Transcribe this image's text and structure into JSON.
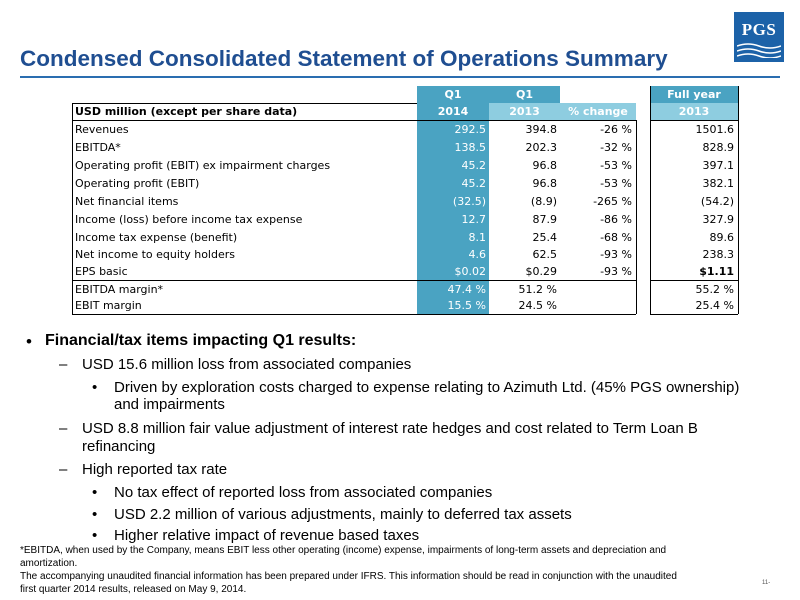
{
  "header": {
    "title": "Condensed Consolidated Statement of Operations Summary",
    "logo_text": "PGS"
  },
  "table": {
    "col_headers": {
      "q1_2014": {
        "top": "Q1",
        "bottom": "2014"
      },
      "q1_2013": {
        "top": "Q1",
        "bottom": "2013"
      },
      "change": "% change",
      "fy_2013": {
        "top": "Full year",
        "bottom": "2013"
      }
    },
    "row_header": "USD million (except per share data)",
    "rows": [
      {
        "label": "Revenues",
        "q1_2014": "292.5",
        "q1_2013": "394.8",
        "change": "-26 %",
        "fy_2013": "1501.6"
      },
      {
        "label": "EBITDA*",
        "q1_2014": "138.5",
        "q1_2013": "202.3",
        "change": "-32 %",
        "fy_2013": "828.9"
      },
      {
        "label": "Operating profit (EBIT) ex impairment charges",
        "q1_2014": "45.2",
        "q1_2013": "96.8",
        "change": "-53 %",
        "fy_2013": "397.1"
      },
      {
        "label": "Operating profit (EBIT)",
        "q1_2014": "45.2",
        "q1_2013": "96.8",
        "change": "-53 %",
        "fy_2013": "382.1"
      },
      {
        "label": "Net financial items",
        "q1_2014": "(32.5)",
        "q1_2013": "(8.9)",
        "change": "-265 %",
        "fy_2013": "(54.2)"
      },
      {
        "label": "Income (loss) before income tax expense",
        "q1_2014": "12.7",
        "q1_2013": "87.9",
        "change": "-86 %",
        "fy_2013": "327.9"
      },
      {
        "label": "Income tax expense (benefit)",
        "q1_2014": "8.1",
        "q1_2013": "25.4",
        "change": "-68 %",
        "fy_2013": "89.6"
      },
      {
        "label": "Net income to equity holders",
        "q1_2014": "4.6",
        "q1_2013": "62.5",
        "change": "-93 %",
        "fy_2013": "238.3"
      },
      {
        "label": "EPS basic",
        "q1_2014": "$0.02",
        "q1_2013": "$0.29",
        "change": "-93 %",
        "fy_2013": "$1.11"
      },
      {
        "label": "EBITDA margin*",
        "q1_2014": "47.4 %",
        "q1_2013": "51.2 %",
        "change": "",
        "fy_2013": "55.2 %"
      },
      {
        "label": "EBIT margin",
        "q1_2014": "15.5 %",
        "q1_2013": "24.5 %",
        "change": "",
        "fy_2013": "25.4 %"
      }
    ]
  },
  "bullets": {
    "heading": "Financial/tax items impacting Q1 results:",
    "sub1": "USD 15.6 million loss from associated companies",
    "sub1a_line1": "Driven by exploration costs charged to expense relating to Azimuth Ltd. (45% PGS ownership)",
    "sub1a_line2": "and impairments",
    "sub2_line1": "USD 8.8 million fair value adjustment of interest rate hedges and cost related to Term Loan B",
    "sub2_line2": "refinancing",
    "sub3": "High reported tax rate",
    "sub3a": "No tax effect of reported loss from associated companies",
    "sub3b": "USD 2.2 million of various adjustments, mainly to deferred tax assets",
    "sub3c": "Higher relative impact of revenue based taxes",
    "dash": "–",
    "dot": "•"
  },
  "footnote": {
    "line1": "*EBITDA, when used by the Company, means EBIT less other operating (income) expense, impairments of long-term assets and depreciation and",
    "line2": "amortization.",
    "line3": "The accompanying unaudited financial information has been prepared under IFRS. This information should be read in conjunction with the unaudited",
    "line4": "first quarter 2014 results, released on May 9, 2014."
  },
  "page": {
    "number": "11-"
  }
}
